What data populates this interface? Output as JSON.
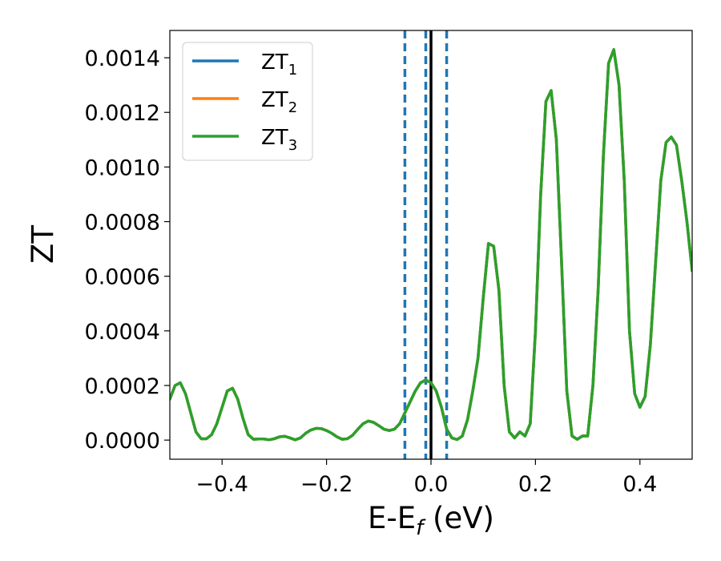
{
  "chart_data": {
    "type": "line",
    "xlabel": "E-E",
    "xlabel_sub": "f",
    "xlabel_unit": " (eV)",
    "ylabel": "ZT",
    "xlim": [
      -0.5,
      0.5
    ],
    "ylim": [
      -7e-05,
      0.0015
    ],
    "xticks": [
      -0.4,
      -0.2,
      0.0,
      0.2,
      0.4
    ],
    "xtick_labels": [
      "−0.4",
      "−0.2",
      "0.0",
      "0.2",
      "0.4"
    ],
    "yticks": [
      0.0,
      0.0002,
      0.0004,
      0.0006,
      0.0008,
      0.001,
      0.0012,
      0.0014
    ],
    "ytick_labels": [
      "0.0000",
      "0.0002",
      "0.0004",
      "0.0006",
      "0.0008",
      "0.0010",
      "0.0012",
      "0.0014"
    ],
    "grid": false,
    "legend": "top-left",
    "colors": {
      "ZT1": "#1f77b4",
      "ZT2": "#ff7f0e",
      "ZT3": "#2ca02c",
      "fermi": "#000000"
    },
    "vlines": [
      {
        "x": -0.05,
        "style": "dashed",
        "color": "#1f77b4"
      },
      {
        "x": -0.01,
        "style": "dashed",
        "color": "#1f77b4"
      },
      {
        "x": 0.0,
        "style": "solid",
        "color": "#000000"
      },
      {
        "x": 0.03,
        "style": "dashed",
        "color": "#1f77b4"
      }
    ],
    "series": [
      {
        "name": "ZT",
        "sub": "1",
        "color": "#1f77b4",
        "x": [
          -0.5,
          -0.49,
          -0.48,
          -0.47,
          -0.46,
          -0.45,
          -0.44,
          -0.43,
          -0.42,
          -0.41,
          -0.4,
          -0.39,
          -0.38,
          -0.37,
          -0.36,
          -0.35,
          -0.34,
          -0.33,
          -0.32,
          -0.31,
          -0.3,
          -0.29,
          -0.28,
          -0.27,
          -0.26,
          -0.25,
          -0.24,
          -0.23,
          -0.22,
          -0.21,
          -0.2,
          -0.19,
          -0.18,
          -0.17,
          -0.16,
          -0.15,
          -0.14,
          -0.13,
          -0.12,
          -0.11,
          -0.1,
          -0.09,
          -0.08,
          -0.07,
          -0.06,
          -0.05,
          -0.04,
          -0.03,
          -0.02,
          -0.01,
          0.0,
          0.01,
          0.02,
          0.03,
          0.04,
          0.05,
          0.06,
          0.07,
          0.08,
          0.09,
          0.1,
          0.11,
          0.12,
          0.13,
          0.14,
          0.15,
          0.16,
          0.17,
          0.18,
          0.19,
          0.2,
          0.21,
          0.22,
          0.23,
          0.24,
          0.25,
          0.26,
          0.27,
          0.28,
          0.29,
          0.3,
          0.31,
          0.32,
          0.33,
          0.34,
          0.35,
          0.36,
          0.37,
          0.38,
          0.39,
          0.4,
          0.41,
          0.42,
          0.43,
          0.44,
          0.45,
          0.46,
          0.47,
          0.48,
          0.49,
          0.5
        ],
        "y": [
          0.00015,
          0.0002,
          0.00021,
          0.00017,
          0.0001,
          3e-05,
          5e-06,
          5e-06,
          2e-05,
          6e-05,
          0.00012,
          0.00018,
          0.00019,
          0.00015,
          8e-05,
          2e-05,
          3e-06,
          4e-06,
          4e-06,
          1e-06,
          5e-06,
          1.2e-05,
          1.4e-05,
          8e-06,
          1e-06,
          8e-06,
          2.5e-05,
          3.7e-05,
          4.3e-05,
          4.2e-05,
          3.5e-05,
          2.5e-05,
          1.2e-05,
          3e-06,
          5e-06,
          1.8e-05,
          4e-05,
          6e-05,
          7e-05,
          6.5e-05,
          5.3e-05,
          4e-05,
          3.5e-05,
          4e-05,
          6e-05,
          0.0001,
          0.00014,
          0.00018,
          0.00021,
          0.00022,
          0.00021,
          0.00018,
          0.00012,
          4e-05,
          8e-06,
          2e-06,
          1.5e-05,
          7.5e-05,
          0.00018,
          0.0003,
          0.00052,
          0.00072,
          0.00071,
          0.00055,
          0.0002,
          3e-05,
          8e-06,
          3e-05,
          1.5e-05,
          6e-05,
          0.0004,
          0.0009,
          0.00124,
          0.00128,
          0.0011,
          0.00065,
          0.00018,
          1.5e-05,
          3e-06,
          1.5e-05,
          1.5e-05,
          0.0002,
          0.00055,
          0.00104,
          0.00138,
          0.00143,
          0.0013,
          0.00095,
          0.0004,
          0.00017,
          0.00012,
          0.00016,
          0.00035,
          0.00065,
          0.00095,
          0.00109,
          0.00111,
          0.00108,
          0.00095,
          0.0008,
          0.00062
        ]
      },
      {
        "name": "ZT",
        "sub": "2",
        "color": "#ff7f0e",
        "x": [
          -0.5,
          -0.49,
          -0.48,
          -0.47,
          -0.46,
          -0.45,
          -0.44,
          -0.43,
          -0.42,
          -0.41,
          -0.4,
          -0.39,
          -0.38,
          -0.37,
          -0.36,
          -0.35,
          -0.34,
          -0.33,
          -0.32,
          -0.31,
          -0.3,
          -0.29,
          -0.28,
          -0.27,
          -0.26,
          -0.25,
          -0.24,
          -0.23,
          -0.22,
          -0.21,
          -0.2,
          -0.19,
          -0.18,
          -0.17,
          -0.16,
          -0.15,
          -0.14,
          -0.13,
          -0.12,
          -0.11,
          -0.1,
          -0.09,
          -0.08,
          -0.07,
          -0.06,
          -0.05,
          -0.04,
          -0.03,
          -0.02,
          -0.01,
          0.0,
          0.01,
          0.02,
          0.03,
          0.04,
          0.05,
          0.06,
          0.07,
          0.08,
          0.09,
          0.1,
          0.11,
          0.12,
          0.13,
          0.14,
          0.15,
          0.16,
          0.17,
          0.18,
          0.19,
          0.2,
          0.21,
          0.22,
          0.23,
          0.24,
          0.25,
          0.26,
          0.27,
          0.28,
          0.29,
          0.3,
          0.31,
          0.32,
          0.33,
          0.34,
          0.35,
          0.36,
          0.37,
          0.38,
          0.39,
          0.4,
          0.41,
          0.42,
          0.43,
          0.44,
          0.45,
          0.46,
          0.47,
          0.48,
          0.49,
          0.5
        ],
        "y": [
          0.00015,
          0.0002,
          0.00021,
          0.00017,
          0.0001,
          3e-05,
          5e-06,
          5e-06,
          2e-05,
          6e-05,
          0.00012,
          0.00018,
          0.00019,
          0.00015,
          8e-05,
          2e-05,
          3e-06,
          4e-06,
          4e-06,
          1e-06,
          5e-06,
          1.2e-05,
          1.4e-05,
          8e-06,
          1e-06,
          8e-06,
          2.5e-05,
          3.7e-05,
          4.3e-05,
          4.2e-05,
          3.5e-05,
          2.5e-05,
          1.2e-05,
          3e-06,
          5e-06,
          1.8e-05,
          4e-05,
          6e-05,
          7e-05,
          6.5e-05,
          5.3e-05,
          4e-05,
          3.5e-05,
          4e-05,
          6e-05,
          0.0001,
          0.00014,
          0.00018,
          0.00021,
          0.00022,
          0.00021,
          0.00018,
          0.00012,
          4e-05,
          8e-06,
          2e-06,
          1.5e-05,
          7.5e-05,
          0.00018,
          0.0003,
          0.00052,
          0.00072,
          0.00071,
          0.00055,
          0.0002,
          3e-05,
          8e-06,
          3e-05,
          1.5e-05,
          6e-05,
          0.0004,
          0.0009,
          0.00124,
          0.00128,
          0.0011,
          0.00065,
          0.00018,
          1.5e-05,
          3e-06,
          1.5e-05,
          1.5e-05,
          0.0002,
          0.00055,
          0.00104,
          0.00138,
          0.00143,
          0.0013,
          0.00095,
          0.0004,
          0.00017,
          0.00012,
          0.00016,
          0.00035,
          0.00065,
          0.00095,
          0.00109,
          0.00111,
          0.00108,
          0.00095,
          0.0008,
          0.00062
        ]
      },
      {
        "name": "ZT",
        "sub": "3",
        "color": "#2ca02c",
        "x": [
          -0.5,
          -0.49,
          -0.48,
          -0.47,
          -0.46,
          -0.45,
          -0.44,
          -0.43,
          -0.42,
          -0.41,
          -0.4,
          -0.39,
          -0.38,
          -0.37,
          -0.36,
          -0.35,
          -0.34,
          -0.33,
          -0.32,
          -0.31,
          -0.3,
          -0.29,
          -0.28,
          -0.27,
          -0.26,
          -0.25,
          -0.24,
          -0.23,
          -0.22,
          -0.21,
          -0.2,
          -0.19,
          -0.18,
          -0.17,
          -0.16,
          -0.15,
          -0.14,
          -0.13,
          -0.12,
          -0.11,
          -0.1,
          -0.09,
          -0.08,
          -0.07,
          -0.06,
          -0.05,
          -0.04,
          -0.03,
          -0.02,
          -0.01,
          0.0,
          0.01,
          0.02,
          0.03,
          0.04,
          0.05,
          0.06,
          0.07,
          0.08,
          0.09,
          0.1,
          0.11,
          0.12,
          0.13,
          0.14,
          0.15,
          0.16,
          0.17,
          0.18,
          0.19,
          0.2,
          0.21,
          0.22,
          0.23,
          0.24,
          0.25,
          0.26,
          0.27,
          0.28,
          0.29,
          0.3,
          0.31,
          0.32,
          0.33,
          0.34,
          0.35,
          0.36,
          0.37,
          0.38,
          0.39,
          0.4,
          0.41,
          0.42,
          0.43,
          0.44,
          0.45,
          0.46,
          0.47,
          0.48,
          0.49,
          0.5
        ],
        "y": [
          0.00015,
          0.0002,
          0.00021,
          0.00017,
          0.0001,
          3e-05,
          5e-06,
          5e-06,
          2e-05,
          6e-05,
          0.00012,
          0.00018,
          0.00019,
          0.00015,
          8e-05,
          2e-05,
          3e-06,
          4e-06,
          4e-06,
          1e-06,
          5e-06,
          1.2e-05,
          1.4e-05,
          8e-06,
          1e-06,
          8e-06,
          2.5e-05,
          3.7e-05,
          4.3e-05,
          4.2e-05,
          3.5e-05,
          2.5e-05,
          1.2e-05,
          3e-06,
          5e-06,
          1.8e-05,
          4e-05,
          6e-05,
          7e-05,
          6.5e-05,
          5.3e-05,
          4e-05,
          3.5e-05,
          4e-05,
          6e-05,
          0.0001,
          0.00014,
          0.00018,
          0.00021,
          0.00022,
          0.00021,
          0.00018,
          0.00012,
          4e-05,
          8e-06,
          2e-06,
          1.5e-05,
          7.5e-05,
          0.00018,
          0.0003,
          0.00052,
          0.00072,
          0.00071,
          0.00055,
          0.0002,
          3e-05,
          8e-06,
          3e-05,
          1.5e-05,
          6e-05,
          0.0004,
          0.0009,
          0.00124,
          0.00128,
          0.0011,
          0.00065,
          0.00018,
          1.5e-05,
          3e-06,
          1.5e-05,
          1.5e-05,
          0.0002,
          0.00055,
          0.00104,
          0.00138,
          0.00143,
          0.0013,
          0.00095,
          0.0004,
          0.00017,
          0.00012,
          0.00016,
          0.00035,
          0.00065,
          0.00095,
          0.00109,
          0.00111,
          0.00108,
          0.00095,
          0.0008,
          0.00062
        ]
      }
    ]
  }
}
